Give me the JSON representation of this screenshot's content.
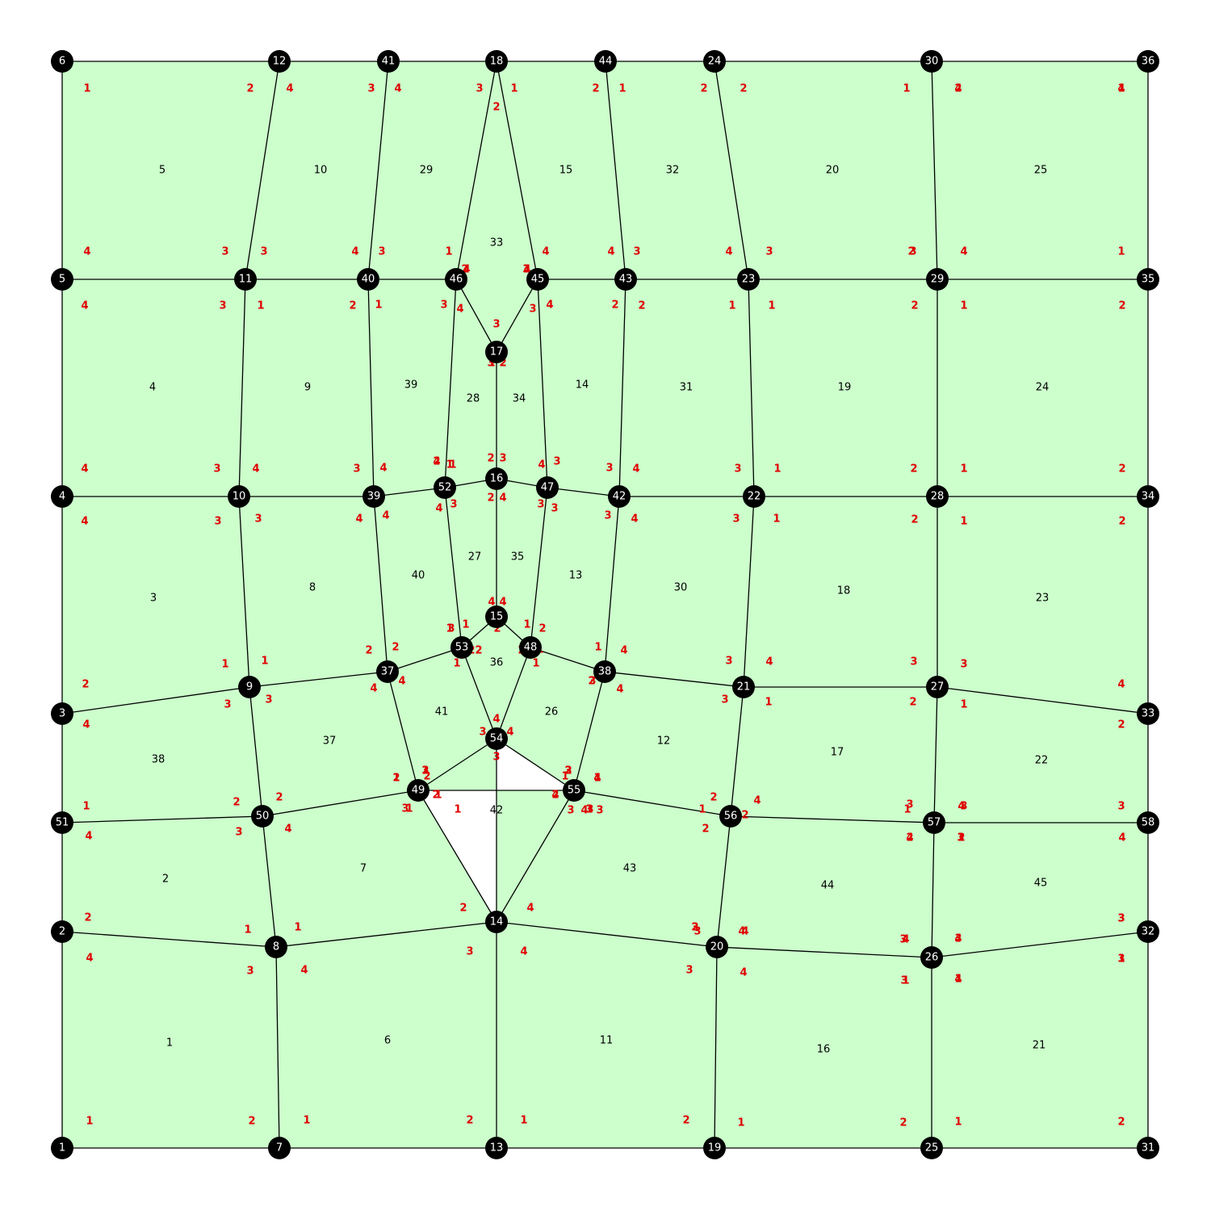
{
  "colors": {
    "element_fill": "#ccffcc",
    "edge": "#000000",
    "node": "#000000",
    "node_text": "#ffffff",
    "local_index": "#e00000",
    "element_text": "#000000"
  },
  "mesh": {
    "nodes": [
      {
        "id": "1"
      },
      {
        "id": "2"
      },
      {
        "id": "3"
      },
      {
        "id": "4"
      },
      {
        "id": "5"
      },
      {
        "id": "6"
      },
      {
        "id": "7"
      },
      {
        "id": "8"
      },
      {
        "id": "9"
      },
      {
        "id": "10"
      },
      {
        "id": "11"
      },
      {
        "id": "12"
      },
      {
        "id": "13"
      },
      {
        "id": "14"
      },
      {
        "id": "15"
      },
      {
        "id": "16"
      },
      {
        "id": "17"
      },
      {
        "id": "18"
      },
      {
        "id": "19"
      },
      {
        "id": "20"
      },
      {
        "id": "21"
      },
      {
        "id": "22"
      },
      {
        "id": "23"
      },
      {
        "id": "24"
      },
      {
        "id": "25"
      },
      {
        "id": "26"
      },
      {
        "id": "27"
      },
      {
        "id": "28"
      },
      {
        "id": "29"
      },
      {
        "id": "30"
      },
      {
        "id": "31"
      },
      {
        "id": "32"
      },
      {
        "id": "33"
      },
      {
        "id": "34"
      },
      {
        "id": "35"
      },
      {
        "id": "36"
      },
      {
        "id": "37"
      },
      {
        "id": "38"
      },
      {
        "id": "39"
      },
      {
        "id": "40"
      },
      {
        "id": "41"
      },
      {
        "id": "42"
      },
      {
        "id": "43"
      },
      {
        "id": "44"
      },
      {
        "id": "45"
      },
      {
        "id": "46"
      },
      {
        "id": "47"
      },
      {
        "id": "48"
      },
      {
        "id": "49"
      },
      {
        "id": "50"
      },
      {
        "id": "51"
      },
      {
        "id": "52"
      },
      {
        "id": "53"
      },
      {
        "id": "54"
      },
      {
        "id": "55"
      },
      {
        "id": "56"
      },
      {
        "id": "57"
      },
      {
        "id": "58"
      }
    ],
    "elements": [
      {
        "id": "1",
        "nodes": [
          "1",
          "7",
          "8",
          "2"
        ]
      },
      {
        "id": "2",
        "nodes": [
          "51",
          "50",
          "8",
          "2"
        ]
      },
      {
        "id": "3",
        "nodes": [
          "3",
          "9",
          "10",
          "4"
        ]
      },
      {
        "id": "4",
        "nodes": [
          "5",
          "11",
          "10",
          "4"
        ]
      },
      {
        "id": "5",
        "nodes": [
          "5",
          "11",
          "12",
          "6"
        ]
      },
      {
        "id": "6",
        "nodes": [
          "8",
          "7",
          "13",
          "14"
        ]
      },
      {
        "id": "7",
        "nodes": [
          "50",
          "49",
          "14",
          "8"
        ]
      },
      {
        "id": "8",
        "nodes": [
          "9",
          "37",
          "39",
          "10"
        ]
      },
      {
        "id": "9",
        "nodes": [
          "10",
          "39",
          "40",
          "11"
        ]
      },
      {
        "id": "10",
        "nodes": [
          "11",
          "40",
          "41",
          "12"
        ]
      },
      {
        "id": "11",
        "nodes": [
          "13",
          "19",
          "20",
          "14"
        ]
      },
      {
        "id": "12",
        "nodes": [
          "55",
          "56",
          "21",
          "38"
        ]
      },
      {
        "id": "13",
        "nodes": [
          "38",
          "48",
          "47",
          "42"
        ]
      },
      {
        "id": "14",
        "nodes": [
          "42",
          "47",
          "45",
          "43"
        ]
      },
      {
        "id": "15",
        "nodes": [
          "45",
          "43",
          "44",
          "18"
        ]
      },
      {
        "id": "16",
        "nodes": [
          "19",
          "25",
          "26",
          "20"
        ]
      },
      {
        "id": "17",
        "nodes": [
          "56",
          "57",
          "27",
          "21"
        ]
      },
      {
        "id": "18",
        "nodes": [
          "21",
          "27",
          "28",
          "22"
        ]
      },
      {
        "id": "19",
        "nodes": [
          "23",
          "22",
          "28",
          "29"
        ]
      },
      {
        "id": "20",
        "nodes": [
          "23",
          "29",
          "30",
          "24"
        ]
      },
      {
        "id": "21",
        "nodes": [
          "25",
          "31",
          "32",
          "26"
        ]
      },
      {
        "id": "22",
        "nodes": [
          "27",
          "57",
          "58",
          "33"
        ]
      },
      {
        "id": "23",
        "nodes": [
          "27",
          "33",
          "34",
          "28"
        ]
      },
      {
        "id": "24",
        "nodes": [
          "29",
          "28",
          "34",
          "35"
        ]
      },
      {
        "id": "25",
        "nodes": [
          "29",
          "35",
          "36",
          "30"
        ]
      },
      {
        "id": "26",
        "nodes": [
          "54",
          "55",
          "38",
          "48"
        ]
      },
      {
        "id": "27",
        "nodes": [
          "53",
          "52",
          "16",
          "15"
        ]
      },
      {
        "id": "28",
        "nodes": [
          "52",
          "46",
          "17",
          "16"
        ]
      },
      {
        "id": "29",
        "nodes": [
          "40",
          "46",
          "18",
          "41"
        ]
      },
      {
        "id": "30",
        "nodes": [
          "42",
          "22",
          "21",
          "38"
        ]
      },
      {
        "id": "31",
        "nodes": [
          "43",
          "23",
          "22",
          "42"
        ]
      },
      {
        "id": "32",
        "nodes": [
          "43",
          "23",
          "24",
          "44"
        ]
      },
      {
        "id": "33",
        "nodes": [
          "46",
          "18",
          "45",
          "17"
        ]
      },
      {
        "id": "34",
        "nodes": [
          "47",
          "45",
          "17",
          "16"
        ]
      },
      {
        "id": "35",
        "nodes": [
          "48",
          "47",
          "16",
          "15"
        ]
      },
      {
        "id": "36",
        "nodes": [
          "48",
          "15",
          "53",
          "54"
        ]
      },
      {
        "id": "37",
        "nodes": [
          "50",
          "9",
          "37",
          "49"
        ]
      },
      {
        "id": "38",
        "nodes": [
          "51",
          "50",
          "9",
          "3"
        ]
      },
      {
        "id": "39",
        "nodes": [
          "52",
          "46",
          "40",
          "39"
        ]
      },
      {
        "id": "40",
        "nodes": [
          "52",
          "53",
          "37",
          "39"
        ]
      },
      {
        "id": "41",
        "nodes": [
          "54",
          "53",
          "37",
          "49"
        ]
      },
      {
        "id": "42",
        "nodes": [
          "54",
          "14",
          "55",
          "49"
        ]
      },
      {
        "id": "43",
        "nodes": [
          "56",
          "55",
          "14",
          "20"
        ]
      },
      {
        "id": "44",
        "nodes": [
          "56",
          "57",
          "26",
          "20"
        ]
      },
      {
        "id": "45",
        "nodes": [
          "58",
          "57",
          "26",
          "32"
        ]
      }
    ],
    "element_labels": [
      {
        "id": "1"
      },
      {
        "id": "2"
      },
      {
        "id": "3"
      },
      {
        "id": "4"
      },
      {
        "id": "5"
      },
      {
        "id": "6"
      },
      {
        "id": "7"
      },
      {
        "id": "8"
      },
      {
        "id": "9"
      },
      {
        "id": "10"
      },
      {
        "id": "11"
      },
      {
        "id": "12"
      },
      {
        "id": "13"
      },
      {
        "id": "14"
      },
      {
        "id": "15"
      },
      {
        "id": "16"
      },
      {
        "id": "17"
      },
      {
        "id": "18"
      },
      {
        "id": "19"
      },
      {
        "id": "20"
      },
      {
        "id": "21"
      },
      {
        "id": "22"
      },
      {
        "id": "23"
      },
      {
        "id": "24"
      },
      {
        "id": "25"
      },
      {
        "id": "26"
      },
      {
        "id": "27"
      },
      {
        "id": "28"
      },
      {
        "id": "29"
      },
      {
        "id": "30"
      },
      {
        "id": "31"
      },
      {
        "id": "32"
      },
      {
        "id": "33"
      },
      {
        "id": "34"
      },
      {
        "id": "35"
      },
      {
        "id": "36"
      },
      {
        "id": "37"
      },
      {
        "id": "38"
      },
      {
        "id": "39"
      },
      {
        "id": "40"
      },
      {
        "id": "41"
      },
      {
        "id": "42"
      },
      {
        "id": "43"
      },
      {
        "id": "44"
      },
      {
        "id": "45"
      }
    ],
    "local_labels": [
      {
        "t": "1"
      },
      {
        "t": "2"
      },
      {
        "t": "1"
      },
      {
        "t": "2"
      },
      {
        "t": "1"
      },
      {
        "t": "2"
      },
      {
        "t": "1"
      },
      {
        "t": "2"
      },
      {
        "t": "4"
      },
      {
        "t": "3"
      },
      {
        "t": "4"
      },
      {
        "t": "3"
      },
      {
        "t": "4"
      },
      {
        "t": "3"
      },
      {
        "t": "4"
      },
      {
        "t": "3"
      },
      {
        "t": "1"
      },
      {
        "t": "2"
      },
      {
        "t": "4"
      },
      {
        "t": "3"
      },
      {
        "t": "4"
      },
      {
        "t": "3"
      },
      {
        "t": "3"
      },
      {
        "t": "4"
      },
      {
        "t": "4"
      },
      {
        "t": "3"
      },
      {
        "t": "4"
      },
      {
        "t": "3"
      },
      {
        "t": "1"
      },
      {
        "t": "2"
      },
      {
        "t": "1"
      },
      {
        "t": "2"
      },
      {
        "t": "2"
      },
      {
        "t": "1"
      },
      {
        "t": "1"
      },
      {
        "t": "2"
      },
      {
        "t": "4"
      },
      {
        "t": "3"
      },
      {
        "t": "4"
      },
      {
        "t": "3"
      },
      {
        "t": "4"
      },
      {
        "t": "3"
      },
      {
        "t": "3"
      },
      {
        "t": "4"
      },
      {
        "t": "4"
      },
      {
        "t": "3"
      },
      {
        "t": "4"
      },
      {
        "t": "3"
      },
      {
        "t": "1"
      },
      {
        "t": "2"
      },
      {
        "t": "1"
      },
      {
        "t": "2"
      },
      {
        "t": "1"
      },
      {
        "t": "2"
      },
      {
        "t": "2"
      },
      {
        "t": "1"
      },
      {
        "t": "1"
      },
      {
        "t": "2"
      },
      {
        "t": "1"
      },
      {
        "t": "2"
      },
      {
        "t": "4"
      },
      {
        "t": "3"
      },
      {
        "t": "4"
      },
      {
        "t": "3"
      },
      {
        "t": "4"
      },
      {
        "t": "3"
      },
      {
        "t": "3"
      },
      {
        "t": "4"
      },
      {
        "t": "4"
      },
      {
        "t": "3"
      },
      {
        "t": "4"
      },
      {
        "t": "3"
      },
      {
        "t": "1"
      },
      {
        "t": "2"
      },
      {
        "t": "1"
      },
      {
        "t": "2"
      },
      {
        "t": "2"
      },
      {
        "t": "1"
      },
      {
        "t": "1"
      },
      {
        "t": "2"
      },
      {
        "t": "2"
      },
      {
        "t": "1"
      },
      {
        "t": "4"
      },
      {
        "t": "3"
      },
      {
        "t": "4"
      },
      {
        "t": "3"
      },
      {
        "t": "3"
      },
      {
        "t": "4"
      },
      {
        "t": "4"
      },
      {
        "t": "3"
      },
      {
        "t": "1"
      },
      {
        "t": "2"
      },
      {
        "t": "1"
      },
      {
        "t": "2"
      },
      {
        "t": "2"
      },
      {
        "t": "1"
      },
      {
        "t": "1"
      },
      {
        "t": "2"
      },
      {
        "t": "4"
      },
      {
        "t": "3"
      },
      {
        "t": "4"
      },
      {
        "t": "3"
      },
      {
        "t": "4"
      },
      {
        "t": "3"
      },
      {
        "t": "4"
      },
      {
        "t": "3"
      },
      {
        "t": "1"
      },
      {
        "t": "2"
      },
      {
        "t": "1"
      },
      {
        "t": "2"
      },
      {
        "t": "1"
      },
      {
        "t": "2"
      },
      {
        "t": "1"
      },
      {
        "t": "2"
      },
      {
        "t": "4"
      },
      {
        "t": "3"
      },
      {
        "t": "4"
      },
      {
        "t": "3"
      },
      {
        "t": "3"
      },
      {
        "t": "4"
      },
      {
        "t": "3"
      },
      {
        "t": "4"
      },
      {
        "t": "3"
      },
      {
        "t": "4"
      },
      {
        "t": "4"
      },
      {
        "t": "3"
      },
      {
        "t": "1"
      },
      {
        "t": "2"
      },
      {
        "t": "1"
      },
      {
        "t": "2"
      },
      {
        "t": "2"
      },
      {
        "t": "1"
      },
      {
        "t": "2"
      },
      {
        "t": "1"
      },
      {
        "t": "2"
      },
      {
        "t": "1"
      },
      {
        "t": "1"
      },
      {
        "t": "2"
      },
      {
        "t": "4"
      },
      {
        "t": "3"
      },
      {
        "t": "4"
      },
      {
        "t": "3"
      },
      {
        "t": "4"
      },
      {
        "t": "3"
      },
      {
        "t": "4"
      },
      {
        "t": "3"
      },
      {
        "t": "3"
      },
      {
        "t": "4"
      },
      {
        "t": "4"
      },
      {
        "t": "3"
      },
      {
        "t": "2"
      },
      {
        "t": "3"
      },
      {
        "t": "4"
      },
      {
        "t": "1"
      },
      {
        "t": "2"
      },
      {
        "t": "3"
      },
      {
        "t": "4"
      },
      {
        "t": "3"
      },
      {
        "t": "4"
      },
      {
        "t": "3"
      },
      {
        "t": "2"
      },
      {
        "t": "4"
      },
      {
        "t": "3"
      },
      {
        "t": "3"
      },
      {
        "t": "4"
      },
      {
        "t": "4"
      },
      {
        "t": "3"
      },
      {
        "t": "1"
      },
      {
        "t": "2"
      },
      {
        "t": "1"
      },
      {
        "t": "2"
      },
      {
        "t": "2"
      },
      {
        "t": "1"
      },
      {
        "t": "2"
      },
      {
        "t": "1"
      },
      {
        "t": "4"
      },
      {
        "t": "3"
      },
      {
        "t": "4"
      },
      {
        "t": "3"
      },
      {
        "t": "2"
      },
      {
        "t": "1"
      },
      {
        "t": "2"
      },
      {
        "t": "1"
      },
      {
        "t": "1"
      },
      {
        "t": "2"
      },
      {
        "t": "1"
      },
      {
        "t": "2"
      },
      {
        "t": "1"
      },
      {
        "t": "2"
      },
      {
        "t": "3"
      },
      {
        "t": "4"
      },
      {
        "t": "4"
      },
      {
        "t": "3"
      },
      {
        "t": "4"
      },
      {
        "t": "3"
      },
      {
        "t": "1"
      },
      {
        "t": "2"
      },
      {
        "t": "2"
      },
      {
        "t": "1"
      },
      {
        "t": "2"
      },
      {
        "t": "1"
      },
      {
        "t": "3"
      },
      {
        "t": "4"
      },
      {
        "t": "3"
      },
      {
        "t": "4"
      },
      {
        "t": "2"
      },
      {
        "t": "1"
      },
      {
        "t": "1"
      },
      {
        "t": "1"
      },
      {
        "t": "4"
      },
      {
        "t": "3"
      },
      {
        "t": "3"
      },
      {
        "t": "4"
      },
      {
        "t": "3"
      },
      {
        "t": "3"
      },
      {
        "t": "4"
      },
      {
        "t": "2"
      },
      {
        "t": "4"
      },
      {
        "t": "2"
      },
      {
        "t": "3"
      },
      {
        "t": "1"
      },
      {
        "t": "2"
      },
      {
        "t": "3"
      },
      {
        "t": "4"
      },
      {
        "t": "1"
      },
      {
        "t": "2"
      },
      {
        "t": "1"
      },
      {
        "t": "2"
      },
      {
        "t": "2"
      },
      {
        "t": "1"
      },
      {
        "t": "1"
      },
      {
        "t": "2"
      },
      {
        "t": "1"
      },
      {
        "t": "1"
      },
      {
        "t": "2"
      },
      {
        "t": "1"
      },
      {
        "t": "1"
      },
      {
        "t": "2"
      },
      {
        "t": "4"
      },
      {
        "t": "3"
      },
      {
        "t": "2"
      },
      {
        "t": "1"
      },
      {
        "t": "4"
      },
      {
        "t": "1"
      },
      {
        "t": "3"
      },
      {
        "t": "2"
      },
      {
        "t": "1"
      },
      {
        "t": "2"
      },
      {
        "t": "4"
      },
      {
        "t": "3"
      },
      {
        "t": "2"
      },
      {
        "t": "3"
      },
      {
        "t": "4"
      },
      {
        "t": "1"
      },
      {
        "t": "1"
      },
      {
        "t": "2"
      },
      {
        "t": "2"
      },
      {
        "t": "1"
      },
      {
        "t": "4"
      },
      {
        "t": "3"
      },
      {
        "t": "4"
      },
      {
        "t": "3"
      },
      {
        "t": "2"
      },
      {
        "t": "1"
      },
      {
        "t": "3"
      },
      {
        "t": "4"
      },
      {
        "t": "3"
      },
      {
        "t": "4"
      },
      {
        "t": "4"
      },
      {
        "t": "3"
      },
      {
        "t": "4"
      },
      {
        "t": "3"
      },
      {
        "t": "4"
      },
      {
        "t": "3"
      },
      {
        "t": "2"
      },
      {
        "t": "4"
      },
      {
        "t": "4"
      },
      {
        "t": "2"
      },
      {
        "t": "3"
      },
      {
        "t": "3"
      }
    ]
  }
}
